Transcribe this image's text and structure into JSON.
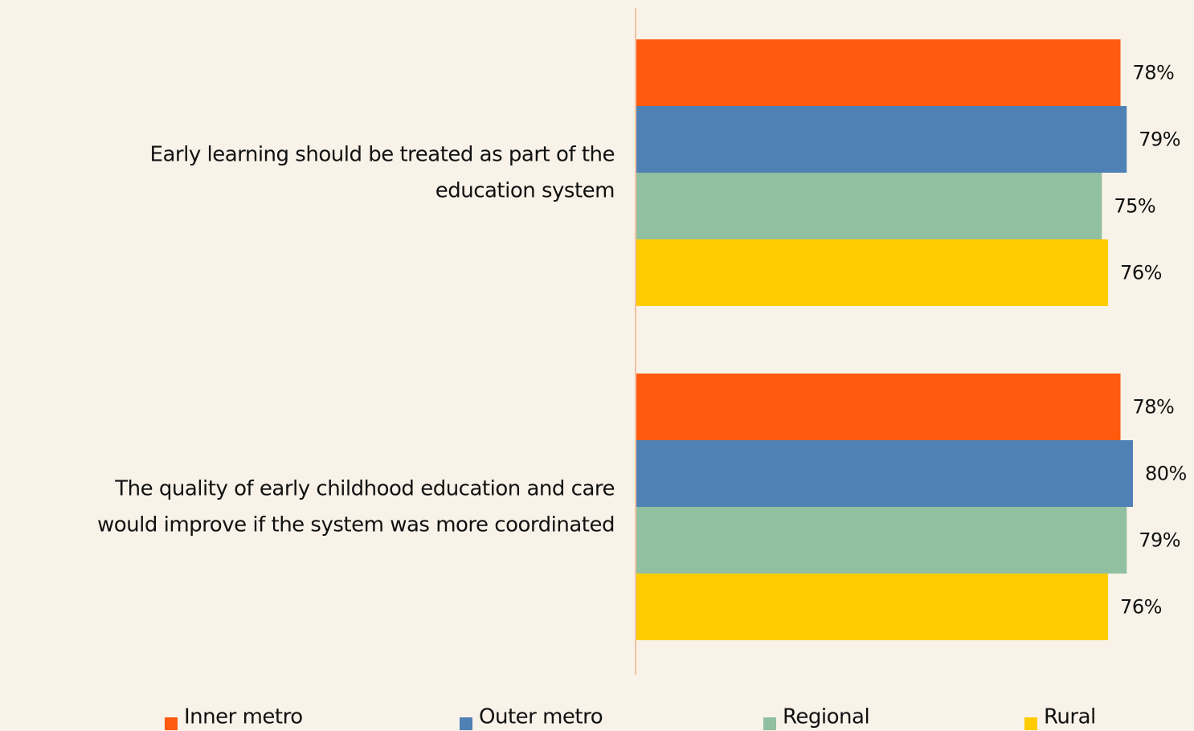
{
  "chart_data": {
    "type": "hbar",
    "categories": [
      "Early learning should be treated as part of the\neducation system",
      "The quality of early childhood education and care\nwould improve if the system was more coordinated"
    ],
    "series": [
      {
        "name": "Inner metro",
        "color": "#ff5a0f",
        "values": [
          78,
          78
        ],
        "value_labels": [
          "78%",
          "78%"
        ]
      },
      {
        "name": "Outer metro",
        "color": "#4f81b4",
        "values": [
          79,
          80
        ],
        "value_labels": [
          "79%",
          "80%"
        ]
      },
      {
        "name": "Regional",
        "color": "#90c09f",
        "values": [
          75,
          79
        ],
        "value_labels": [
          "75%",
          "79%"
        ]
      },
      {
        "name": "Rural",
        "color": "#ffcc00",
        "values": [
          76,
          76
        ],
        "value_labels": [
          "76%",
          "76%"
        ]
      }
    ],
    "xlim": [
      0,
      80
    ]
  }
}
